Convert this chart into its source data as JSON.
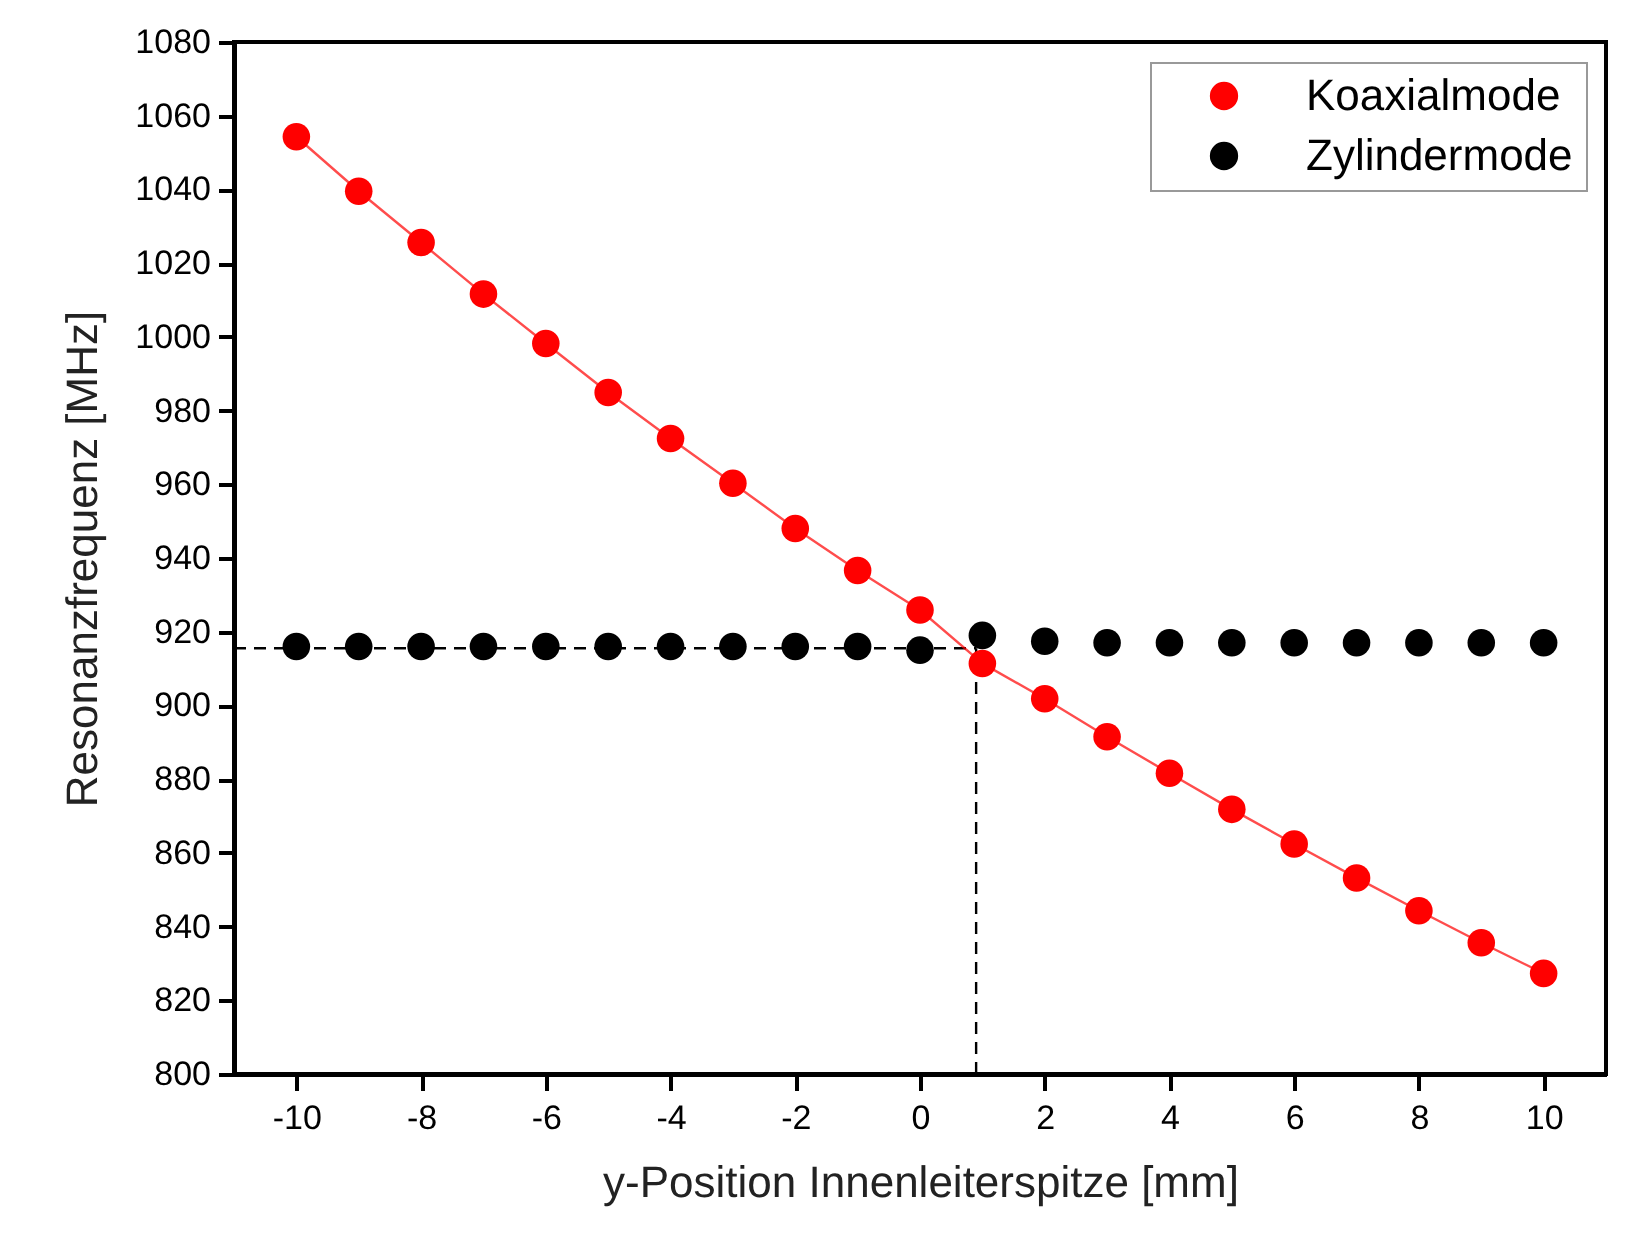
{
  "chart_data": {
    "type": "scatter",
    "xlabel": "y-Position Innenleiterspitze [mm]",
    "ylabel": "Resonanzfrequenz [MHz]",
    "x": [
      -10,
      -9,
      -8,
      -7,
      -6,
      -5,
      -4,
      -3,
      -2,
      -1,
      0,
      1,
      2,
      3,
      4,
      5,
      6,
      7,
      8,
      9,
      10
    ],
    "series": [
      {
        "name": "Koaxialmode",
        "type": "line",
        "color": "#ff0000",
        "values": [
          1054.3,
          1039.5,
          1025.6,
          1011.6,
          998.2,
          984.9,
          972.4,
          960.3,
          948,
          936.6,
          925.9,
          911.4,
          901.8,
          891.5,
          881.6,
          871.8,
          862.4,
          853.2,
          844.3,
          835.6,
          827.3
        ]
      },
      {
        "name": "Zylindermode",
        "color": "#000000",
        "values": [
          916,
          916,
          916,
          916,
          916,
          916,
          916,
          916,
          916,
          916,
          915,
          919,
          917.4,
          917,
          917,
          917,
          917,
          917,
          917,
          917,
          917
        ]
      }
    ],
    "marker": "circle",
    "xlim": [
      -11,
      11
    ],
    "xticks": [
      -10,
      -8,
      -6,
      -4,
      -2,
      0,
      2,
      4,
      6,
      8,
      10
    ],
    "ylim": [
      800,
      1080
    ],
    "yticks": [
      800,
      820,
      840,
      860,
      880,
      900,
      920,
      940,
      960,
      980,
      1000,
      1020,
      1040,
      1060,
      1080
    ],
    "ref_lines": [
      {
        "axis": "y",
        "value": 915.5,
        "line_style": "dashed",
        "color": "#000000"
      },
      {
        "axis": "x",
        "value": 0.9,
        "line_style": "dashed",
        "color": "#000000"
      }
    ],
    "legend": "top right",
    "grid": false
  }
}
